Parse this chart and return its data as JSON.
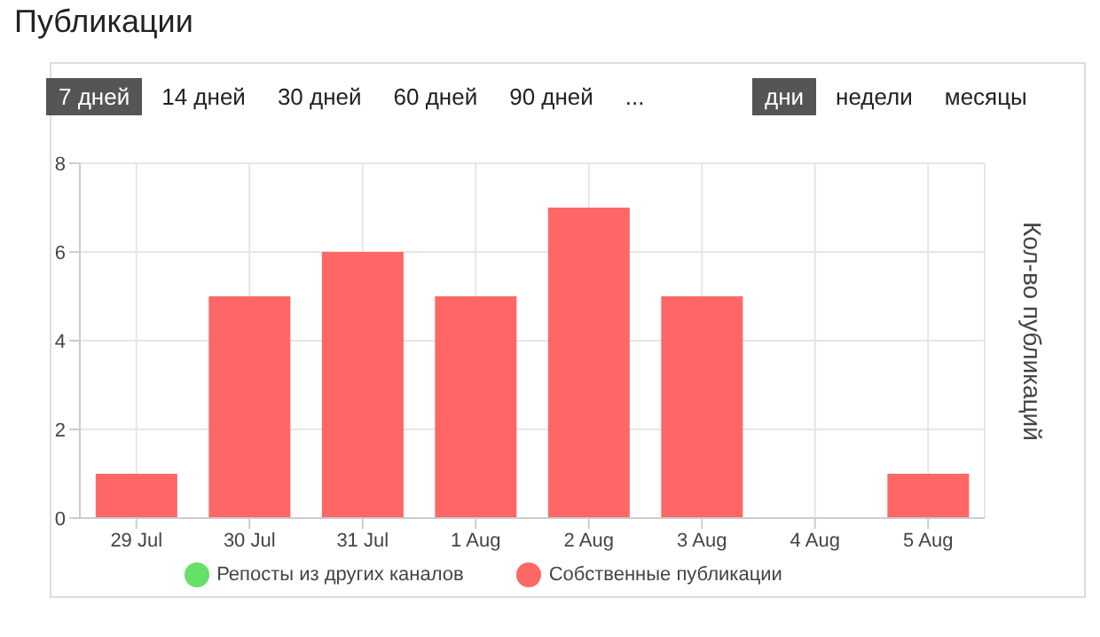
{
  "chart_data": {
    "type": "bar",
    "title": "Публикации",
    "ylabel": "Кол-во публикаций",
    "annotations": [
      "7 дней",
      "14 дней",
      "30 дней",
      "60 дней",
      "90 дней",
      "...",
      "дни",
      "недели",
      "месяцы"
    ],
    "categories": [
      "29 Jul",
      "30 Jul",
      "31 Jul",
      "1 Aug",
      "2 Aug",
      "3 Aug",
      "4 Aug",
      "5 Aug"
    ],
    "series": [
      {
        "name": "Собственные публикации",
        "color": "#ff6666",
        "values": [
          1,
          5,
          6,
          5,
          7,
          5,
          0,
          1
        ]
      },
      {
        "name": "Репосты из других каналов",
        "color": "#66e066",
        "values": [
          0,
          0,
          0,
          0,
          0,
          0,
          0,
          0
        ]
      }
    ],
    "stacked": true,
    "ylim": [
      0,
      8
    ],
    "yticks": [
      0,
      2,
      4,
      6,
      8
    ],
    "grid": true,
    "legend": "bottom"
  }
}
